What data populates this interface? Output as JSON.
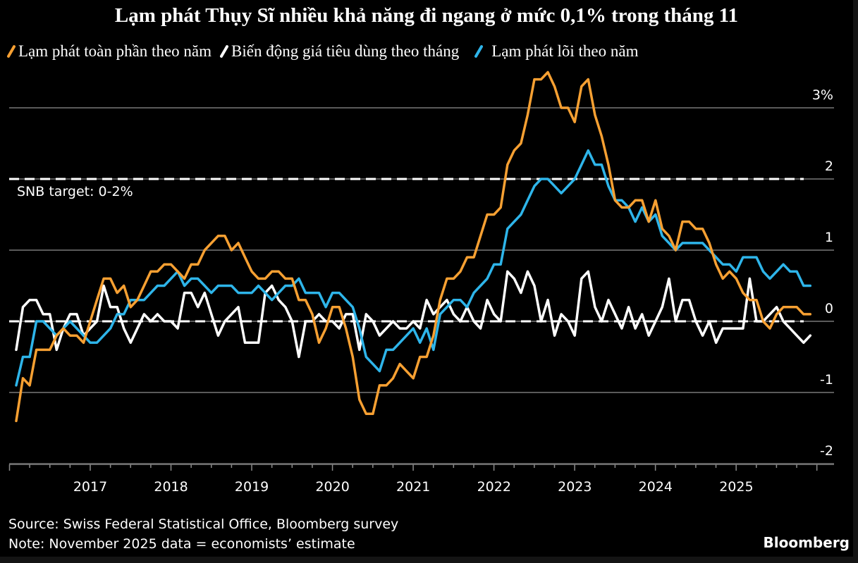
{
  "chart_data": {
    "type": "line",
    "title": "Lạm phát Thụy Sĩ nhiều khả năng đi ngang ở mức 0,1% trong tháng 11",
    "xlabel": "",
    "ylabel": "",
    "x_start": "2016-01",
    "x_end": "2025-11",
    "x_frequency": "monthly",
    "x_tick_labels": [
      "2017",
      "2018",
      "2019",
      "2020",
      "2021",
      "2022",
      "2023",
      "2024",
      "2025"
    ],
    "y_tick_labels": [
      "3%",
      "2",
      "1",
      "0",
      "-1",
      "-2"
    ],
    "y_ticks": [
      3,
      2,
      1,
      0,
      -1,
      -2
    ],
    "ylim": [
      -2,
      3.5
    ],
    "grid": true,
    "legend_position": "top-left",
    "reference_lines": [
      {
        "value": 2,
        "style": "dashed"
      },
      {
        "value": 0,
        "style": "dashed"
      }
    ],
    "annotations": [
      "SNB target: 0-2%"
    ],
    "series": [
      {
        "name": "Lạm phát toàn phần theo năm",
        "color": "#f7a032",
        "values": [
          -1.4,
          -0.8,
          -0.9,
          -0.4,
          -0.4,
          -0.4,
          -0.2,
          -0.1,
          -0.2,
          -0.2,
          -0.3,
          0.0,
          0.3,
          0.6,
          0.6,
          0.4,
          0.5,
          0.2,
          0.3,
          0.5,
          0.7,
          0.7,
          0.8,
          0.8,
          0.7,
          0.6,
          0.8,
          0.8,
          1.0,
          1.1,
          1.2,
          1.2,
          1.0,
          1.1,
          0.9,
          0.7,
          0.6,
          0.6,
          0.7,
          0.7,
          0.6,
          0.6,
          0.3,
          0.3,
          0.1,
          -0.3,
          -0.1,
          0.2,
          0.2,
          -0.1,
          -0.5,
          -1.1,
          -1.3,
          -1.3,
          -0.9,
          -0.9,
          -0.8,
          -0.6,
          -0.7,
          -0.8,
          -0.5,
          -0.5,
          -0.2,
          0.3,
          0.6,
          0.6,
          0.7,
          0.9,
          0.9,
          1.2,
          1.5,
          1.5,
          1.6,
          2.2,
          2.4,
          2.5,
          2.9,
          3.4,
          3.4,
          3.5,
          3.3,
          3.0,
          3.0,
          2.8,
          3.3,
          3.4,
          2.9,
          2.6,
          2.2,
          1.7,
          1.6,
          1.6,
          1.7,
          1.7,
          1.4,
          1.7,
          1.3,
          1.2,
          1.0,
          1.4,
          1.4,
          1.3,
          1.3,
          1.1,
          0.8,
          0.6,
          0.7,
          0.6,
          0.4,
          0.3,
          0.3,
          0.0,
          -0.1,
          0.1,
          0.2,
          0.2,
          0.2,
          0.1,
          0.1
        ]
      },
      {
        "name": "Biến động giá tiêu dùng theo tháng",
        "color": "#ffffff",
        "values": [
          -0.4,
          0.2,
          0.3,
          0.3,
          0.1,
          0.1,
          -0.4,
          -0.1,
          0.1,
          0.1,
          -0.2,
          -0.1,
          0.0,
          0.5,
          0.2,
          0.2,
          -0.1,
          -0.3,
          -0.1,
          0.1,
          0.0,
          0.1,
          0.0,
          0.0,
          -0.1,
          0.4,
          0.4,
          0.2,
          0.4,
          0.1,
          -0.2,
          0.0,
          0.1,
          0.2,
          -0.3,
          -0.3,
          -0.3,
          0.4,
          0.5,
          0.3,
          0.2,
          0.0,
          -0.5,
          0.0,
          0.0,
          0.1,
          0.0,
          0.0,
          -0.1,
          0.1,
          0.1,
          -0.4,
          0.1,
          0.0,
          -0.2,
          -0.1,
          0.0,
          -0.1,
          -0.1,
          0.0,
          -0.1,
          0.3,
          0.1,
          0.2,
          0.3,
          0.1,
          0.0,
          0.2,
          0.0,
          -0.1,
          0.3,
          0.1,
          0.0,
          0.7,
          0.6,
          0.4,
          0.7,
          0.5,
          0.0,
          0.3,
          -0.2,
          0.1,
          0.0,
          -0.2,
          0.6,
          0.7,
          0.2,
          0.0,
          0.3,
          0.1,
          -0.1,
          0.2,
          -0.1,
          0.1,
          -0.2,
          0.0,
          0.2,
          0.6,
          0.0,
          0.3,
          0.3,
          0.0,
          -0.2,
          0.0,
          -0.3,
          -0.1,
          -0.1,
          -0.1,
          -0.1,
          0.6,
          0.0,
          0.0,
          0.1,
          0.2,
          0.0,
          -0.1,
          -0.2,
          -0.3,
          -0.2
        ]
      },
      {
        "name": "Lạm phát lõi theo năm",
        "color": "#2eb5ea",
        "values": [
          -0.9,
          -0.5,
          -0.5,
          0.0,
          0.0,
          -0.1,
          -0.2,
          -0.1,
          0.0,
          -0.1,
          -0.2,
          -0.3,
          -0.3,
          -0.2,
          -0.1,
          0.1,
          0.1,
          0.3,
          0.3,
          0.3,
          0.4,
          0.5,
          0.5,
          0.6,
          0.7,
          0.5,
          0.6,
          0.6,
          0.5,
          0.4,
          0.5,
          0.5,
          0.5,
          0.4,
          0.4,
          0.4,
          0.5,
          0.4,
          0.3,
          0.4,
          0.5,
          0.5,
          0.6,
          0.4,
          0.4,
          0.4,
          0.2,
          0.4,
          0.4,
          0.3,
          0.2,
          -0.1,
          -0.5,
          -0.6,
          -0.7,
          -0.4,
          -0.4,
          -0.3,
          -0.2,
          -0.1,
          -0.3,
          -0.1,
          -0.4,
          0.1,
          0.2,
          0.3,
          0.3,
          0.2,
          0.4,
          0.5,
          0.6,
          0.8,
          0.8,
          1.3,
          1.4,
          1.5,
          1.7,
          1.9,
          2.0,
          2.0,
          1.9,
          1.8,
          1.9,
          2.0,
          2.2,
          2.4,
          2.2,
          2.2,
          1.9,
          1.7,
          1.7,
          1.6,
          1.4,
          1.6,
          1.4,
          1.5,
          1.2,
          1.1,
          1.0,
          1.1,
          1.1,
          1.1,
          1.1,
          1.0,
          0.9,
          0.8,
          0.8,
          0.7,
          0.9,
          0.9,
          0.9,
          0.7,
          0.6,
          0.7,
          0.8,
          0.7,
          0.7,
          0.5,
          0.5
        ]
      }
    ]
  },
  "legend": [
    {
      "label": "Lạm phát toàn phần theo năm",
      "color": "#f7a032"
    },
    {
      "label": "Biến động giá tiêu dùng theo tháng",
      "color": "#ffffff"
    },
    {
      "label": "Lạm phát lõi theo năm",
      "color": "#2eb5ea"
    }
  ],
  "footer": {
    "source": "Source: Swiss Federal Statistical Office, Bloomberg survey",
    "note": "Note: November 2025 data = economists’ estimate",
    "brand": "Bloomberg"
  }
}
